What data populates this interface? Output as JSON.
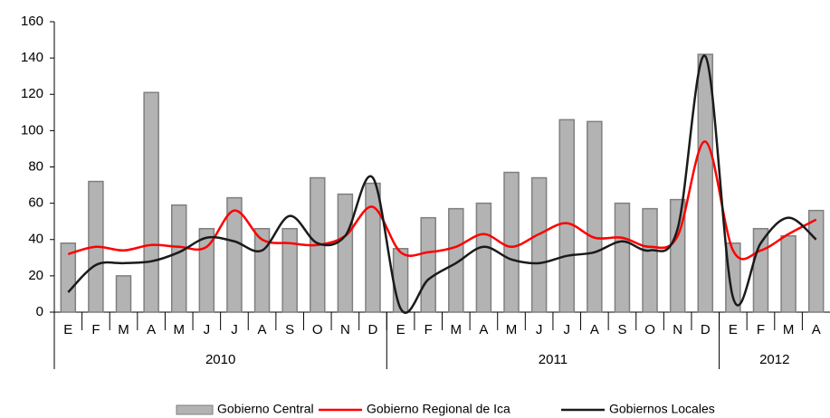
{
  "chart_data": {
    "type": "bar-line",
    "groups": [
      {
        "label": "2010",
        "categories": [
          "E",
          "F",
          "M",
          "A",
          "M",
          "J",
          "J",
          "A",
          "S",
          "O",
          "N",
          "D"
        ]
      },
      {
        "label": "2011",
        "categories": [
          "E",
          "F",
          "M",
          "A",
          "M",
          "J",
          "J",
          "A",
          "S",
          "O",
          "N",
          "D"
        ]
      },
      {
        "label": "2012",
        "categories": [
          "E",
          "F",
          "M",
          "A"
        ]
      }
    ],
    "series": [
      {
        "name": "Gobierno Central",
        "type": "bar",
        "color": "#b3b3b3",
        "values": [
          38,
          72,
          20,
          121,
          59,
          46,
          63,
          46,
          46,
          74,
          65,
          71,
          35,
          52,
          57,
          60,
          77,
          74,
          106,
          105,
          60,
          57,
          62,
          142,
          38,
          46,
          42,
          56
        ]
      },
      {
        "name": "Gobierno Regional de Ica",
        "type": "line",
        "color": "#ff0000",
        "values": [
          32,
          36,
          34,
          37,
          36,
          36,
          56,
          40,
          38,
          37,
          42,
          58,
          33,
          33,
          36,
          43,
          36,
          43,
          49,
          41,
          41,
          36,
          42,
          94,
          34,
          34,
          43,
          51
        ]
      },
      {
        "name": "Gobiernos Locales",
        "type": "line",
        "color": "#1a1a1a",
        "values": [
          11,
          26,
          27,
          28,
          33,
          41,
          39,
          34,
          53,
          38,
          42,
          74,
          2,
          18,
          27,
          36,
          29,
          27,
          31,
          33,
          39,
          34,
          46,
          141,
          8,
          38,
          52,
          40
        ]
      }
    ],
    "ylim": [
      0,
      160
    ],
    "yticks": [
      0,
      20,
      40,
      60,
      80,
      100,
      120,
      140,
      160
    ],
    "grid": false
  }
}
